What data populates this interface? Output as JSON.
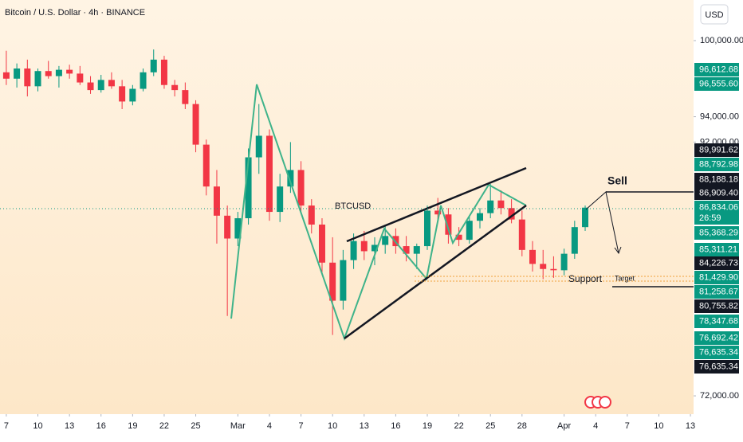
{
  "chart_data": {
    "type": "candlestick",
    "title": "Bitcoin / U.S. Dollar · 4h · BINANCE",
    "currency": "USD",
    "annotations": {
      "symbol": "BTCUSD",
      "sell": "Sell",
      "support": "Support",
      "target": "Target"
    },
    "countdown": "26:59",
    "up_color": "#089981",
    "down_color": "#f23645",
    "x": [
      0,
      1,
      2,
      3,
      4,
      5,
      6,
      7,
      8,
      9,
      10,
      11,
      12,
      13,
      14,
      15,
      16,
      17,
      18,
      19,
      20,
      21,
      22,
      23,
      24,
      25,
      26,
      27,
      28,
      29,
      30,
      31,
      32,
      33,
      34,
      35,
      36,
      37,
      38,
      39,
      40,
      41,
      42,
      43,
      44,
      45,
      46,
      47,
      48,
      49,
      50,
      51,
      52,
      53,
      54,
      55
    ],
    "open": [
      97500,
      97000,
      97800,
      96400,
      97600,
      97200,
      97700,
      97400,
      96700,
      96100,
      96900,
      96400,
      95200,
      96200,
      97500,
      98500,
      96500,
      96100,
      95000,
      91800,
      88500,
      86200,
      84400,
      86000,
      90800,
      92500,
      86500,
      88500,
      89800,
      87000,
      85500,
      82500,
      79500,
      82700,
      84200,
      83400,
      83900,
      84600,
      83800,
      83200,
      83800,
      86600,
      86300,
      84700,
      84300,
      85800,
      86400,
      87400,
      86800,
      85900,
      83500,
      82400,
      82000,
      81900,
      83200,
      85300
    ],
    "high": [
      99200,
      98200,
      98500,
      97800,
      98400,
      98000,
      98100,
      98000,
      97200,
      97300,
      97500,
      96900,
      96500,
      97800,
      99300,
      98800,
      96900,
      96700,
      95300,
      92200,
      89800,
      87000,
      86500,
      91500,
      95000,
      93000,
      89500,
      92000,
      90500,
      87500,
      86000,
      84500,
      83500,
      84800,
      85000,
      84500,
      85500,
      85200,
      84600,
      84000,
      87000,
      87600,
      86800,
      85300,
      86200,
      86800,
      88700,
      88200,
      87500,
      86600,
      84200,
      83500,
      83000,
      83600,
      85800,
      87000
    ],
    "low": [
      96500,
      96300,
      95600,
      96000,
      97000,
      96300,
      97000,
      96500,
      95800,
      95900,
      96200,
      94600,
      94900,
      96000,
      97200,
      96200,
      95600,
      94600,
      91200,
      87800,
      84000,
      78300,
      83800,
      85500,
      89500,
      85800,
      85700,
      88000,
      86500,
      84800,
      81500,
      76800,
      78800,
      82000,
      82700,
      82300,
      83200,
      83200,
      82600,
      82000,
      83500,
      85800,
      84000,
      83800,
      84000,
      85200,
      86000,
      86300,
      85600,
      83000,
      81800,
      81200,
      81300,
      81500,
      82800,
      85000
    ],
    "close": [
      97000,
      97800,
      96400,
      97600,
      97200,
      97700,
      97400,
      96700,
      96100,
      96900,
      96400,
      95200,
      96200,
      97500,
      98500,
      96500,
      96100,
      95000,
      91800,
      88500,
      86200,
      84400,
      86000,
      90800,
      92500,
      86500,
      88500,
      89800,
      87000,
      85500,
      82500,
      79500,
      82700,
      84200,
      83400,
      83900,
      84600,
      83800,
      83200,
      83800,
      86600,
      86300,
      84700,
      84300,
      85800,
      86400,
      87400,
      86800,
      85900,
      83500,
      82400,
      82000,
      81900,
      83200,
      85300,
      86834.06
    ],
    "xlim": [
      -0.6,
      65.3
    ],
    "ylim": [
      70560,
      103200
    ],
    "xticks": [
      {
        "value": 0,
        "label": "7"
      },
      {
        "value": 3,
        "label": "10"
      },
      {
        "value": 6,
        "label": "13"
      },
      {
        "value": 9,
        "label": "16"
      },
      {
        "value": 12,
        "label": "19"
      },
      {
        "value": 15,
        "label": "22"
      },
      {
        "value": 18,
        "label": "25"
      },
      {
        "value": 22,
        "label": "Mar"
      },
      {
        "value": 25,
        "label": "4"
      },
      {
        "value": 28,
        "label": "7"
      },
      {
        "value": 31,
        "label": "10"
      },
      {
        "value": 34,
        "label": "13"
      },
      {
        "value": 37,
        "label": "16"
      },
      {
        "value": 40,
        "label": "19"
      },
      {
        "value": 43,
        "label": "22"
      },
      {
        "value": 46,
        "label": "25"
      },
      {
        "value": 49,
        "label": "28"
      },
      {
        "value": 53,
        "label": "Apr"
      },
      {
        "value": 56,
        "label": "4"
      },
      {
        "value": 59,
        "label": "7"
      },
      {
        "value": 62,
        "label": "10"
      },
      {
        "value": 65,
        "label": "13"
      }
    ],
    "yticks": [
      {
        "value": 100000,
        "label": "100,000.00"
      },
      {
        "value": 94000,
        "label": "94,000.00"
      },
      {
        "value": 92000,
        "label": "92,000.00"
      },
      {
        "value": 72000,
        "label": "72,000.00"
      }
    ],
    "price_labels": [
      {
        "value": 96612.68,
        "label": "96,612.68",
        "color": "#089981"
      },
      {
        "value": 96555.6,
        "label": "96,555.60",
        "color": "#089981"
      },
      {
        "value": 89991.62,
        "label": "89,991.62",
        "color": "#131722"
      },
      {
        "value": 88792.98,
        "label": "88,792.98",
        "color": "#089981"
      },
      {
        "value": 88188.18,
        "label": "88,188.18",
        "color": "#131722"
      },
      {
        "value": 86909.4,
        "label": "86,909.40",
        "color": "#131722"
      },
      {
        "value": 86834.06,
        "label": "86,834.06",
        "color": "#089981"
      },
      {
        "value": 85368.29,
        "label": "85,368.29",
        "color": "#089981"
      },
      {
        "value": 85311.21,
        "label": "85,311.21",
        "color": "#089981"
      },
      {
        "value": 84226.73,
        "label": "84,226.73",
        "color": "#131722"
      },
      {
        "value": 81429.9,
        "label": "81,429.90",
        "color": "#089981"
      },
      {
        "value": 81258.67,
        "label": "81,258.67",
        "color": "#089981"
      },
      {
        "value": 80755.82,
        "label": "80,755.82",
        "color": "#131722"
      },
      {
        "value": 78347.68,
        "label": "78,347.68",
        "color": "#089981"
      },
      {
        "value": 76692.42,
        "label": "76,692.42",
        "color": "#089981"
      },
      {
        "value": 76635.34,
        "label": "76,635.34",
        "color": "#089981"
      },
      {
        "value": 76635.34,
        "label": "76,635.34",
        "color": "#131722"
      }
    ]
  }
}
